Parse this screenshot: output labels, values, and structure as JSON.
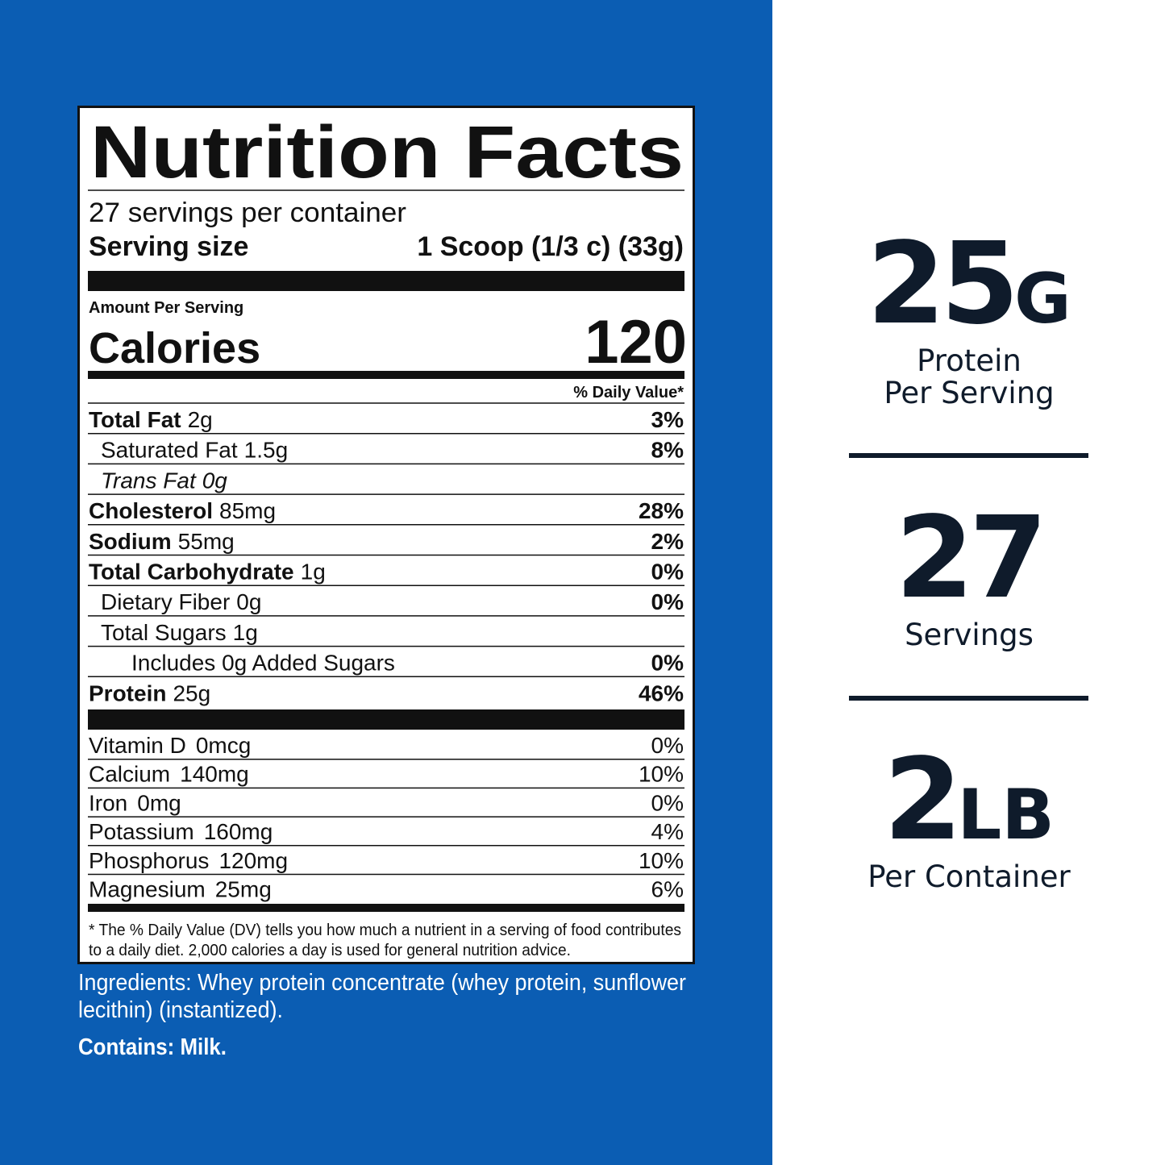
{
  "label": {
    "title": "Nutrition Facts",
    "servings_per_container": "27 servings per container",
    "serving_size_label": "Serving size",
    "serving_size_value": "1 Scoop (1/3 c) (33g)",
    "amount_per_serving": "Amount Per Serving",
    "calories_label": "Calories",
    "calories_value": "120",
    "daily_value_header": "% Daily Value*",
    "nutrients": [
      {
        "name": "Total Fat",
        "amount": "2g",
        "dv": "3%",
        "sub": [
          {
            "name": "Saturated Fat",
            "amount": "1.5g",
            "dv": "8%"
          },
          {
            "name": "Trans Fat",
            "amount": "0g",
            "italic": true
          }
        ]
      },
      {
        "name": "Cholesterol",
        "amount": "85mg",
        "dv": "28%"
      },
      {
        "name": "Sodium",
        "amount": "55mg",
        "dv": "2%"
      },
      {
        "name": "Total Carbohydrate",
        "amount": "1g",
        "dv": "0%",
        "sub": [
          {
            "name": "Dietary Fiber",
            "amount": "0g",
            "dv": "0%"
          },
          {
            "name": "Total Sugars",
            "amount": "1g",
            "sub": [
              {
                "name": "Includes 0g Added Sugars",
                "dv": "0%"
              }
            ]
          }
        ]
      },
      {
        "name": "Protein",
        "amount": "25g",
        "dv": "46%"
      }
    ],
    "vitamins": [
      {
        "name": "Vitamin D",
        "amount": "0mcg",
        "dv": "0%"
      },
      {
        "name": "Calcium",
        "amount": "140mg",
        "dv": "10%"
      },
      {
        "name": "Iron",
        "amount": "0mg",
        "dv": "0%"
      },
      {
        "name": "Potassium",
        "amount": "160mg",
        "dv": "4%"
      },
      {
        "name": "Phosphorus",
        "amount": "120mg",
        "dv": "10%"
      },
      {
        "name": "Magnesium",
        "amount": "25mg",
        "dv": "6%"
      }
    ],
    "footnote": [
      "* The % Daily Value (DV) tells you how much a nutrient in a serving of food contributes",
      "to a daily diet. 2,000 calories a day is used for general nutrition advice."
    ]
  },
  "ingredients": [
    "Ingredients: Whey protein concentrate (whey protein, sunflower",
    "lecithin) (instantized)."
  ],
  "contains": "Contains: Milk.",
  "highlights": [
    {
      "value": "25",
      "unit": "G",
      "label": [
        "Protein",
        "Per Serving"
      ]
    },
    {
      "value": "27",
      "label": [
        "Servings"
      ]
    },
    {
      "value": "2",
      "unit": "LB",
      "label": [
        "Per Container"
      ]
    }
  ]
}
